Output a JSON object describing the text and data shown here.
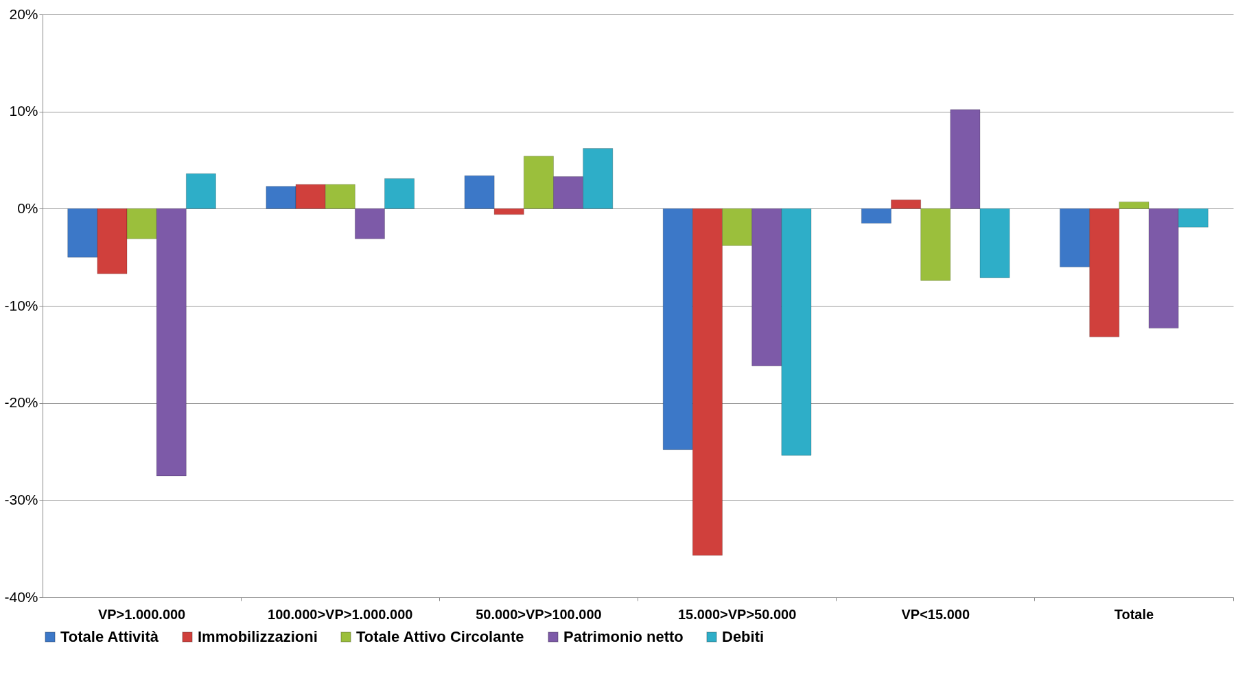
{
  "chart_data": {
    "type": "bar",
    "categories": [
      "VP>1.000.000",
      "100.000>VP>1.000.000",
      "50.000>VP>100.000",
      "15.000>VP>50.000",
      "VP<15.000",
      "Totale"
    ],
    "series": [
      {
        "name": "Totale Attività",
        "color": "#3c78c8",
        "values": [
          -5.0,
          2.3,
          3.4,
          -24.8,
          -1.5,
          -6.0
        ]
      },
      {
        "name": "Immobilizzazioni",
        "color": "#d0403c",
        "values": [
          -6.7,
          2.5,
          -0.6,
          -35.7,
          0.9,
          -13.2
        ]
      },
      {
        "name": "Totale Attivo Circolante",
        "color": "#9bbf3c",
        "values": [
          -3.1,
          2.5,
          5.4,
          -3.8,
          -7.4,
          0.7
        ]
      },
      {
        "name": "Patrimonio netto",
        "color": "#7d5aa8",
        "values": [
          -27.5,
          -3.1,
          3.3,
          -16.2,
          10.2,
          -12.3
        ]
      },
      {
        "name": "Debiti",
        "color": "#2eaec8",
        "values": [
          3.6,
          3.1,
          6.2,
          -25.4,
          -7.1,
          -1.9
        ]
      }
    ],
    "ylim": [
      -40,
      20
    ],
    "yticks": [
      {
        "value": -40,
        "label": "-40%"
      },
      {
        "value": -30,
        "label": "-30%"
      },
      {
        "value": -20,
        "label": "-20%"
      },
      {
        "value": -10,
        "label": "-10%"
      },
      {
        "value": 0,
        "label": "0%"
      },
      {
        "value": 10,
        "label": "10%"
      },
      {
        "value": 20,
        "label": "20%"
      }
    ],
    "grid": "y",
    "legend": "bottom"
  }
}
